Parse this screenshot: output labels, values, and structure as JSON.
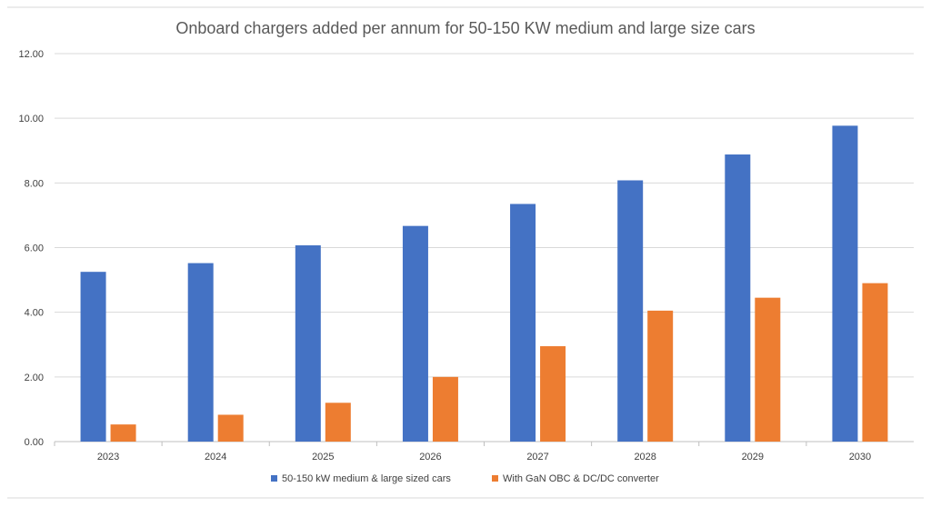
{
  "chart_data": {
    "type": "bar",
    "title": "Onboard chargers added per annum for 50-150 KW medium and large size cars",
    "xlabel": "",
    "ylabel": "",
    "categories": [
      "2023",
      "2024",
      "2025",
      "2026",
      "2027",
      "2028",
      "2029",
      "2030"
    ],
    "series": [
      {
        "name": "50-150 kW medium & large sized cars",
        "color": "#4472C4",
        "values": [
          5.25,
          5.52,
          6.07,
          6.67,
          7.35,
          8.08,
          8.88,
          9.77
        ]
      },
      {
        "name": "With GaN OBC & DC/DC converter",
        "color": "#ED7D31",
        "values": [
          0.53,
          0.83,
          1.2,
          2.0,
          2.95,
          4.05,
          4.45,
          4.9
        ]
      }
    ],
    "ylim": [
      0,
      12
    ],
    "yticks": [
      "0.00",
      "2.00",
      "4.00",
      "6.00",
      "8.00",
      "10.00",
      "12.00"
    ],
    "grid": true,
    "legend_position": "bottom"
  }
}
